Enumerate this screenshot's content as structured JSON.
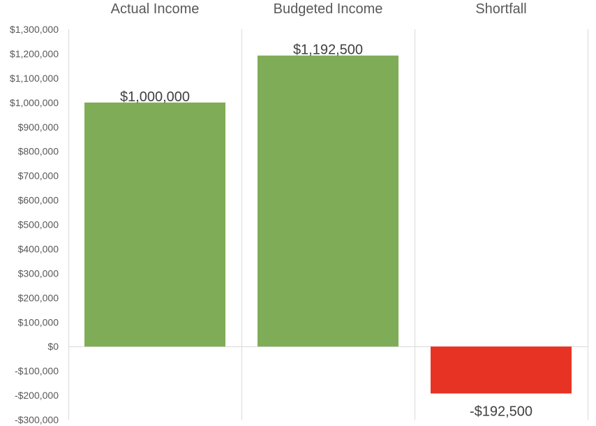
{
  "chart_data": {
    "type": "bar",
    "categories": [
      "Actual Income",
      "Budgeted Income",
      "Shortfall"
    ],
    "values": [
      1000000,
      1192500,
      -192500
    ],
    "data_labels": [
      "$1,000,000",
      "$1,192,500",
      "-$192,500"
    ],
    "y_tick_values": [
      1300000,
      1200000,
      1100000,
      1000000,
      900000,
      800000,
      700000,
      600000,
      500000,
      400000,
      300000,
      200000,
      100000,
      0,
      -100000,
      -200000,
      -300000
    ],
    "y_tick_labels": [
      "$1,300,000",
      "$1,200,000",
      "$1,100,000",
      "$1,000,000",
      "$900,000",
      "$800,000",
      "$700,000",
      "$600,000",
      "$500,000",
      "$400,000",
      "$300,000",
      "$200,000",
      "$100,000",
      "$0",
      "-$100,000",
      "-$200,000",
      "-$300,000"
    ],
    "ylim": [
      -300000,
      1300000
    ],
    "grid": "vertical category separators",
    "legend": "none",
    "category_axis_position": "top",
    "bar_colors": [
      "#7fac56",
      "#7fac56",
      "#e73324"
    ],
    "gridline_color": "#d9d9d9",
    "text_color": "#595959"
  }
}
